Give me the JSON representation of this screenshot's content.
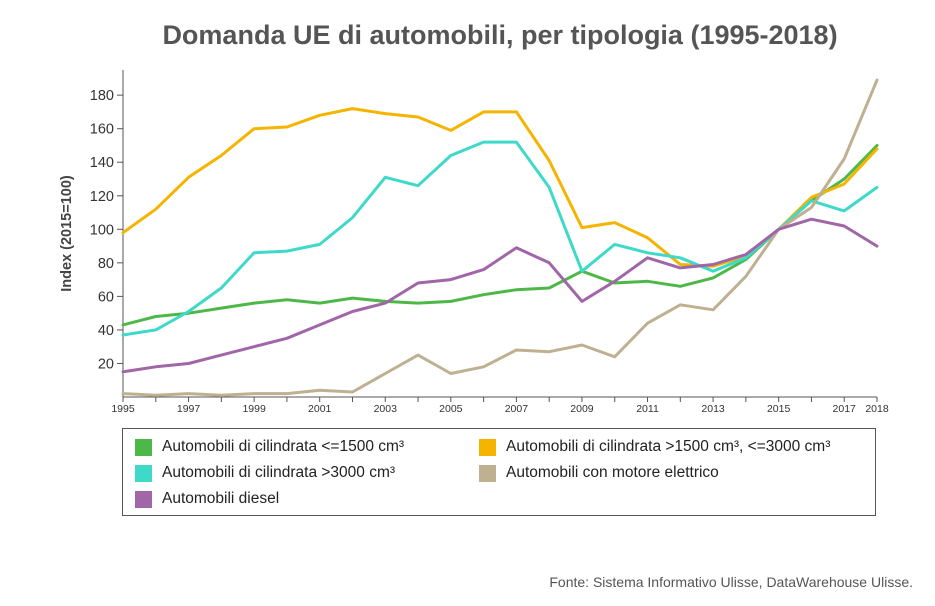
{
  "chart_data": {
    "type": "line",
    "title": "Domanda UE di automobili, per tipologia (1995-2018)",
    "ylabel": "Index (2015=100)",
    "xlabel": "",
    "xlim": [
      1995,
      2018
    ],
    "ylim": [
      0,
      195
    ],
    "yticks": [
      20,
      40,
      60,
      80,
      100,
      120,
      140,
      160,
      180
    ],
    "xticks": [
      1995,
      1997,
      1999,
      2001,
      2003,
      2005,
      2007,
      2009,
      2011,
      2013,
      2015,
      2017,
      2018
    ],
    "grid": false,
    "legend_position": "bottom",
    "x": [
      1995,
      1996,
      1997,
      1998,
      1999,
      2000,
      2001,
      2002,
      2003,
      2004,
      2005,
      2006,
      2007,
      2008,
      2009,
      2010,
      2011,
      2012,
      2013,
      2014,
      2015,
      2016,
      2017,
      2018
    ],
    "series": [
      {
        "name": "Automobili di cilindrata <=1500 cm³",
        "color": "#4db848",
        "values": [
          43,
          48,
          50,
          53,
          56,
          58,
          56,
          59,
          57,
          56,
          57,
          61,
          64,
          65,
          75,
          68,
          69,
          66,
          71,
          82,
          100,
          117,
          130,
          150
        ]
      },
      {
        "name": "Automobili di cilindrata >1500 cm³, <=3000 cm³",
        "color": "#f5b400",
        "values": [
          98,
          112,
          131,
          144,
          160,
          161,
          168,
          172,
          169,
          167,
          159,
          170,
          170,
          141,
          101,
          104,
          95,
          79,
          78,
          84,
          100,
          119,
          127,
          148
        ]
      },
      {
        "name": "Automobili di cilindrata >3000 cm³",
        "color": "#3ed9c9",
        "values": [
          37,
          40,
          51,
          65,
          86,
          87,
          91,
          107,
          131,
          126,
          144,
          152,
          152,
          125,
          75,
          91,
          86,
          83,
          75,
          83,
          100,
          117,
          111,
          125
        ]
      },
      {
        "name": "Automobili con motore elettrico",
        "color": "#bfb091",
        "values": [
          2,
          1,
          2,
          1,
          2,
          2,
          4,
          3,
          14,
          25,
          14,
          18,
          28,
          27,
          31,
          24,
          44,
          55,
          52,
          72,
          100,
          113,
          142,
          189
        ]
      },
      {
        "name": "Automobili diesel",
        "color": "#a066a8",
        "values": [
          15,
          18,
          20,
          25,
          30,
          35,
          43,
          51,
          56,
          68,
          70,
          76,
          89,
          80,
          57,
          69,
          83,
          77,
          79,
          85,
          100,
          106,
          102,
          90
        ]
      }
    ]
  },
  "legend": {
    "items": [
      {
        "label": "Automobili di cilindrata <=1500 cm³",
        "color": "#4db848"
      },
      {
        "label": "Automobili di cilindrata >1500 cm³, <=3000 cm³",
        "color": "#f5b400"
      },
      {
        "label": "Automobili di cilindrata >3000 cm³",
        "color": "#3ed9c9"
      },
      {
        "label": "Automobili con motore elettrico",
        "color": "#bfb091"
      },
      {
        "label": "Automobili diesel",
        "color": "#a066a8"
      }
    ]
  },
  "source": "Fonte: Sistema Informativo Ulisse, DataWarehouse Ulisse."
}
